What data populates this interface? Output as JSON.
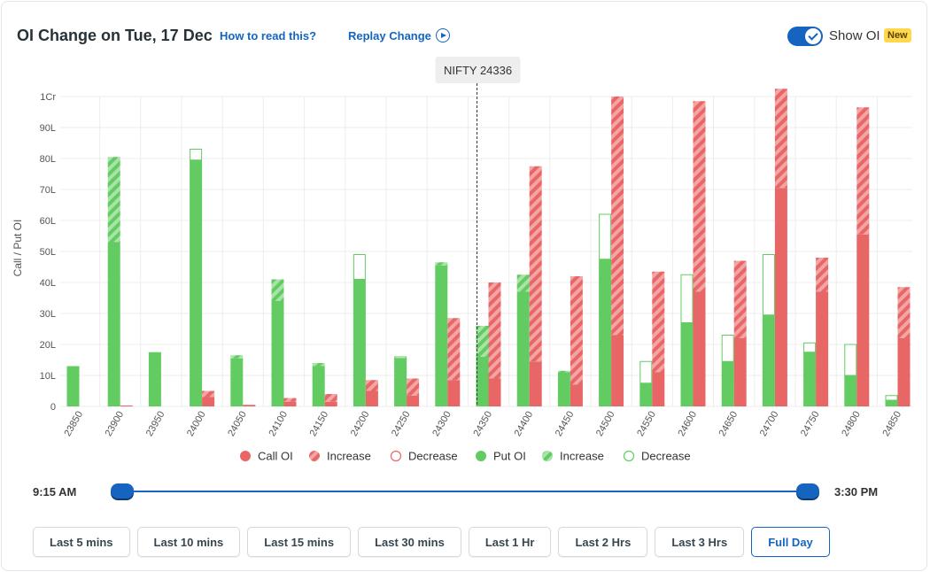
{
  "header": {
    "title": "OI Change on Tue, 17 Dec",
    "how_to_read": "How to read this?",
    "replay": "Replay Change",
    "show_oi_label": "Show OI",
    "new_badge": "New",
    "show_oi_on": true
  },
  "colors": {
    "call": "#e86666",
    "call_light": "#f3a5a5",
    "put": "#62cc62",
    "put_light": "#a9e3a9"
  },
  "chart_data": {
    "type": "bar",
    "ylabel": "Call / Put OI",
    "y_unit": "lakh",
    "ylim": [
      0,
      100
    ],
    "yticks": [
      0,
      10,
      20,
      30,
      40,
      50,
      60,
      70,
      80,
      90,
      100
    ],
    "ytick_labels": [
      "0",
      "10L",
      "20L",
      "30L",
      "40L",
      "50L",
      "60L",
      "70L",
      "80L",
      "90L",
      "1Cr"
    ],
    "grid": true,
    "spot_marker": {
      "label": "NIFTY 24336",
      "value": 24336
    },
    "categories": [
      "23850",
      "23900",
      "23950",
      "24000",
      "24050",
      "24100",
      "24150",
      "24200",
      "24250",
      "24300",
      "24350",
      "24400",
      "24450",
      "24500",
      "24550",
      "24600",
      "24650",
      "24700",
      "24750",
      "24800",
      "24850"
    ],
    "series": [
      {
        "name": "Put OI",
        "values": [
          13,
          53,
          17.5,
          79.5,
          15.5,
          34,
          13,
          41,
          15.5,
          45.5,
          16,
          37,
          11,
          47.5,
          7.5,
          27,
          14.5,
          29.5,
          17.5,
          10,
          2
        ]
      },
      {
        "name": "Put OI Increase",
        "values": [
          0,
          27.5,
          0,
          0,
          1,
          7,
          1,
          0,
          0,
          1,
          10,
          5.5,
          0.5,
          0,
          0,
          0,
          0,
          0,
          0,
          0,
          0
        ]
      },
      {
        "name": "Put OI Decrease",
        "values": [
          0,
          0,
          0,
          3.5,
          0,
          0,
          0,
          8,
          0.5,
          0,
          0,
          0,
          0,
          14.5,
          7,
          15.5,
          8.5,
          19.5,
          3,
          10,
          1.5
        ]
      },
      {
        "name": "Call OI",
        "values": [
          0,
          0.3,
          0,
          3,
          0.5,
          1.5,
          1.5,
          5,
          3.5,
          8.5,
          9,
          14.5,
          7,
          23,
          11,
          37,
          22,
          70.5,
          37,
          55.5,
          22
        ]
      },
      {
        "name": "Call OI Increase",
        "values": [
          0,
          0,
          0,
          2,
          0,
          1.2,
          2.5,
          3.5,
          5.5,
          20,
          31,
          63,
          35,
          77,
          32.5,
          61.5,
          25,
          32,
          11,
          41,
          16.5
        ]
      },
      {
        "name": "Call OI Decrease",
        "values": [
          0,
          0,
          0,
          0,
          0,
          0,
          0,
          0,
          0,
          0,
          0,
          0,
          0,
          0,
          0,
          0,
          0,
          0,
          0,
          0,
          0
        ]
      }
    ],
    "legend": [
      {
        "label": "Call OI",
        "style": "call-solid"
      },
      {
        "label": "Increase",
        "style": "call-hatch"
      },
      {
        "label": "Decrease",
        "style": "call-outline"
      },
      {
        "label": "Put OI",
        "style": "put-solid"
      },
      {
        "label": "Increase",
        "style": "put-hatch"
      },
      {
        "label": "Decrease",
        "style": "put-outline"
      }
    ],
    "legend_position": "bottom"
  },
  "slider": {
    "start": "9:15 AM",
    "end": "3:30 PM"
  },
  "time_buttons": [
    {
      "label": "Last 5 mins",
      "active": false
    },
    {
      "label": "Last 10 mins",
      "active": false
    },
    {
      "label": "Last 15 mins",
      "active": false
    },
    {
      "label": "Last 30 mins",
      "active": false
    },
    {
      "label": "Last 1 Hr",
      "active": false
    },
    {
      "label": "Last 2 Hrs",
      "active": false
    },
    {
      "label": "Last 3 Hrs",
      "active": false
    },
    {
      "label": "Full Day",
      "active": true
    }
  ]
}
